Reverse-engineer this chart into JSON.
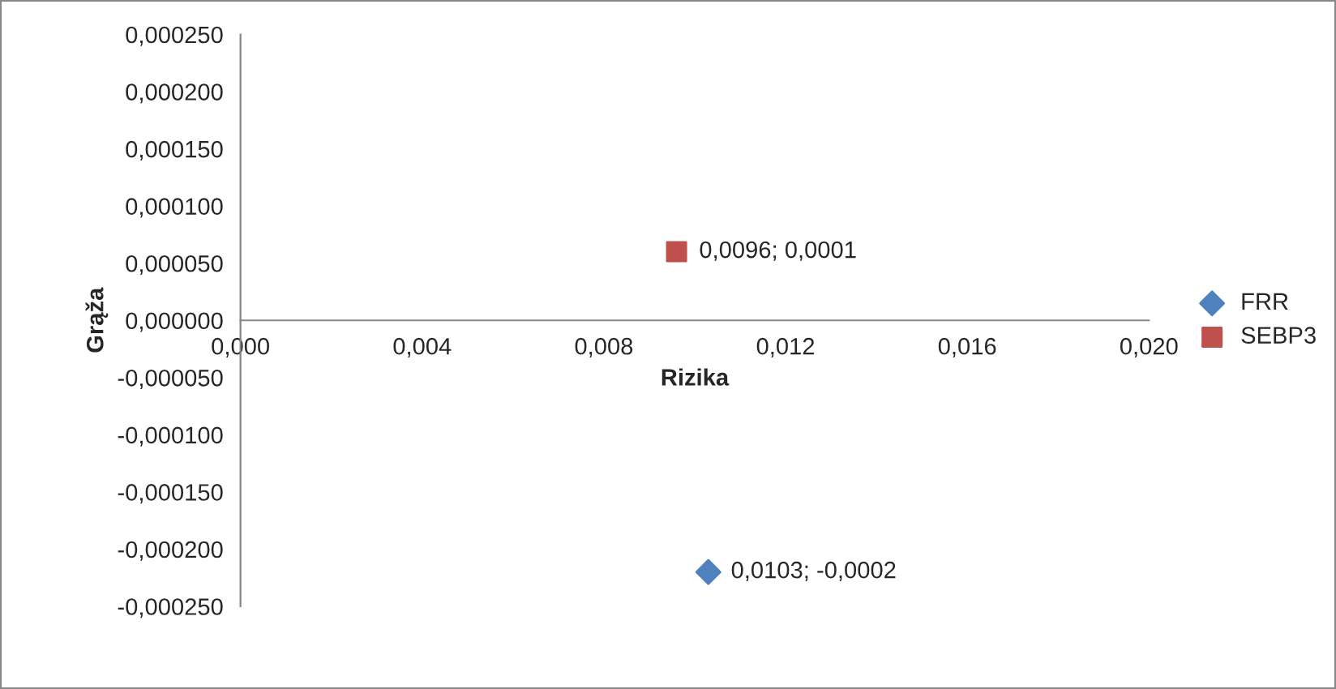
{
  "chart_data": {
    "type": "scatter",
    "xlabel": "Rizika",
    "ylabel": "Grąža",
    "series": [
      {
        "name": "FRR",
        "color": "#4f81bd",
        "marker": "diamond",
        "x": [
          0.0103
        ],
        "values": [
          -0.00022
        ],
        "value_labels": [
          "0,0103; -0,0002"
        ]
      },
      {
        "name": "SEBP3",
        "color": "#c0504d",
        "marker": "square",
        "x": [
          0.0096
        ],
        "values": [
          6e-05
        ],
        "value_labels": [
          "0,0096; 0,0001"
        ]
      }
    ],
    "xlim": [
      0,
      0.02
    ],
    "xticks": [
      {
        "value": 0,
        "label": "0,000"
      },
      {
        "value": 0.004,
        "label": "0,004"
      },
      {
        "value": 0.008,
        "label": "0,008"
      },
      {
        "value": 0.012,
        "label": "0,012"
      },
      {
        "value": 0.016,
        "label": "0,016"
      },
      {
        "value": 0.02,
        "label": "0,020"
      }
    ],
    "ylim": [
      -0.00025,
      0.00025
    ],
    "yticks": [
      {
        "value": -0.00025,
        "label": "-0,000250"
      },
      {
        "value": -0.0002,
        "label": "-0,000200"
      },
      {
        "value": -0.00015,
        "label": "-0,000150"
      },
      {
        "value": -0.0001,
        "label": "-0,000100"
      },
      {
        "value": -5e-05,
        "label": "-0,000050"
      },
      {
        "value": 0,
        "label": "0,000000"
      },
      {
        "value": 5e-05,
        "label": "0,000050"
      },
      {
        "value": 0.0001,
        "label": "0,000100"
      },
      {
        "value": 0.00015,
        "label": "0,000150"
      },
      {
        "value": 0.0002,
        "label": "0,000200"
      },
      {
        "value": 0.00025,
        "label": "0,000250"
      }
    ],
    "grid": false,
    "legend": "right"
  }
}
